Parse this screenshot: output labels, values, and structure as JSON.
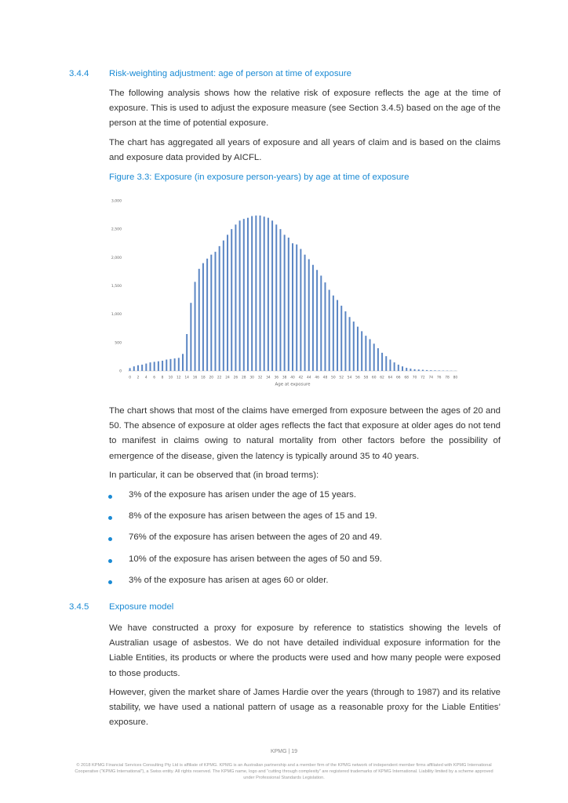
{
  "sections": [
    {
      "number": "3.4.4",
      "title": "Risk-weighting adjustment: age of person at time of exposure",
      "paragraphs": [
        "The following analysis shows how the relative risk of exposure reflects the age at the time of exposure. This is used to adjust the exposure measure (see Section 3.4.5) based on the age of the person at the time of potential exposure.",
        "The chart has aggregated all years of exposure and all years of claim and is based on the claims and exposure data provided by AICFL.",
        "The chart shows that most of the claims have emerged from exposure between the ages of 20 and 50. The absence of exposure at older ages reflects the fact that exposure at older ages do not tend to manifest in claims owing to natural mortality from other factors before the possibility of emergence of the disease, given the latency is typically around 35 to 40 years.",
        "In particular, it can be observed that (in broad terms):"
      ],
      "bullets": [
        "3% of the exposure has arisen under the age of 15 years.",
        "8% of the exposure has arisen between the ages of 15 and 19.",
        "76% of the exposure has arisen between the ages of 20 and 49.",
        "10% of the exposure has arisen between the ages of 50 and 59.",
        "3% of the exposure has arisen at ages 60 or older."
      ]
    },
    {
      "number": "3.4.5",
      "title": "Exposure model",
      "paragraphs": [
        "We have constructed a proxy for exposure by reference to statistics showing the levels of Australian usage of asbestos. We do not have detailed individual exposure information for the Liable Entities, its products or where the products were used and how many people were exposed to those products.",
        "However, given the market share of James Hardie over the years (through to 1987) and its relative stability, we have used a national pattern of usage as a reasonable proxy for the Liable Entities’ exposure."
      ]
    }
  ],
  "footer": {
    "page": "KPMG | 19",
    "legal": "© 2018 KPMG Financial Services Consulting Pty Ltd is affiliate of KPMG. KPMG is an Australian partnership and a member firm of the KPMG network of independent member firms affiliated with KPMG International Cooperative (“KPMG International”), a Swiss entity. All rights reserved. The KPMG name, logo and “cutting through complexity” are registered trademarks of KPMG International. Liability limited by a scheme approved under Professional Standards Legislation."
  },
  "chart_data": {
    "type": "bar",
    "title": "Figure 3.3: Exposure (in exposure person-years) by age at time of exposure",
    "xlabel": "Age at exposure",
    "categories": [
      0,
      null,
      2,
      null,
      4,
      null,
      6,
      null,
      8,
      null,
      10,
      null,
      12,
      null,
      14,
      null,
      16,
      null,
      18,
      null,
      20,
      null,
      22,
      null,
      24,
      null,
      26,
      null,
      28,
      null,
      30,
      null,
      32,
      null,
      34,
      null,
      36,
      null,
      38,
      null,
      40,
      null,
      42,
      null,
      44,
      null,
      46,
      null,
      48,
      null,
      50,
      null,
      52,
      null,
      54,
      null,
      56,
      null,
      58,
      null,
      60,
      null,
      62,
      null,
      64,
      null,
      66,
      null,
      68,
      null,
      70,
      null,
      72,
      null,
      74,
      null,
      76,
      null,
      78,
      null,
      80
    ],
    "values": [
      50,
      80,
      100,
      110,
      130,
      150,
      160,
      170,
      180,
      200,
      210,
      220,
      230,
      300,
      650,
      1200,
      1570,
      1800,
      1900,
      1980,
      2050,
      2100,
      2200,
      2300,
      2400,
      2500,
      2580,
      2650,
      2680,
      2700,
      2730,
      2740,
      2740,
      2720,
      2700,
      2650,
      2580,
      2500,
      2400,
      2350,
      2250,
      2230,
      2150,
      2050,
      1970,
      1870,
      1780,
      1680,
      1560,
      1430,
      1330,
      1250,
      1150,
      1050,
      950,
      870,
      780,
      700,
      620,
      560,
      480,
      400,
      320,
      260,
      200,
      150,
      110,
      80,
      55,
      40,
      30,
      25,
      20,
      15,
      12,
      10,
      8,
      6,
      5,
      4,
      3
    ],
    "color": "#5b86c4",
    "ylim": [
      0,
      3000
    ],
    "yticks": [
      0,
      500,
      {
        "value": 1000,
        "label": "1,000"
      },
      {
        "value": 1500,
        "label": "1,500"
      },
      {
        "value": 2000,
        "label": "2,000"
      },
      {
        "value": 2500,
        "label": "2,500"
      },
      {
        "value": 3000,
        "label": "3,000"
      }
    ],
    "grid": false
  }
}
